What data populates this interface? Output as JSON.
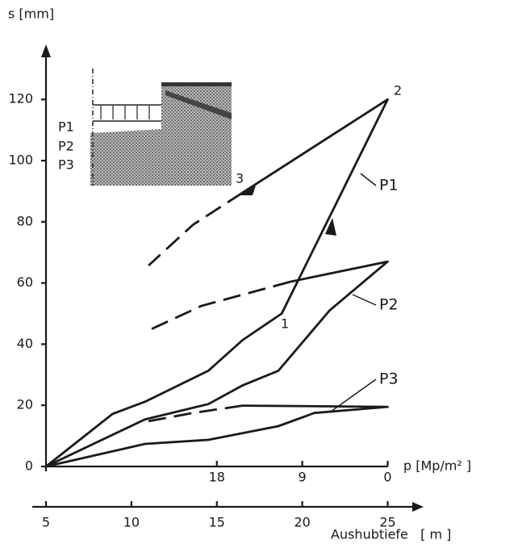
{
  "chart_data": {
    "type": "line",
    "ylabel": "s [mm]",
    "xlabel": "Aushubtiefe   [ m ]",
    "x2label": "p [Mp/m² ]",
    "xlim": [
      5,
      27.1
    ],
    "xticks": [
      5,
      10,
      15,
      20,
      25
    ],
    "x2lim": [
      36,
      -3.78
    ],
    "x2ticks": [
      18,
      9,
      0
    ],
    "ylim": [
      0,
      138
    ],
    "yticks": [
      0,
      20,
      40,
      60,
      80,
      100,
      120
    ],
    "color": "#1a1a1a",
    "series": [
      {
        "name": "P1",
        "x": [
          5,
          8.9,
          10.8,
          14.5,
          16.5,
          18.8,
          25,
          16.5
        ],
        "values": [
          0,
          17.2,
          21.2,
          31.3,
          41.3,
          50,
          120,
          89.5
        ]
      },
      {
        "x": [
          16.5,
          13.6,
          11.0
        ],
        "values": [
          89.5,
          79,
          65.7
        ],
        "dashed": true
      },
      {
        "name": "P2",
        "x": [
          5,
          10.8,
          14.5,
          16.5,
          18.6,
          21.6,
          25,
          19.3
        ],
        "values": [
          0,
          15.4,
          20.4,
          26.5,
          31.3,
          51,
          67,
          60.4
        ]
      },
      {
        "x": [
          19.3,
          14.1,
          11.0
        ],
        "values": [
          60.4,
          52.5,
          44.5
        ],
        "dashed": true
      },
      {
        "name": "P3",
        "x": [
          5,
          10.8,
          14.5,
          18.6,
          20.7,
          25,
          16.5
        ],
        "values": [
          0,
          7.4,
          8.7,
          13.2,
          17.5,
          19.5,
          19.9
        ]
      },
      {
        "x": [
          16.5,
          13.6,
          11.0
        ],
        "values": [
          19.9,
          17.5,
          14.8
        ],
        "dashed": true
      }
    ],
    "point_labels": [
      "1",
      "2",
      "3"
    ],
    "inset_labels": [
      "P1",
      "P2",
      "P3"
    ]
  }
}
